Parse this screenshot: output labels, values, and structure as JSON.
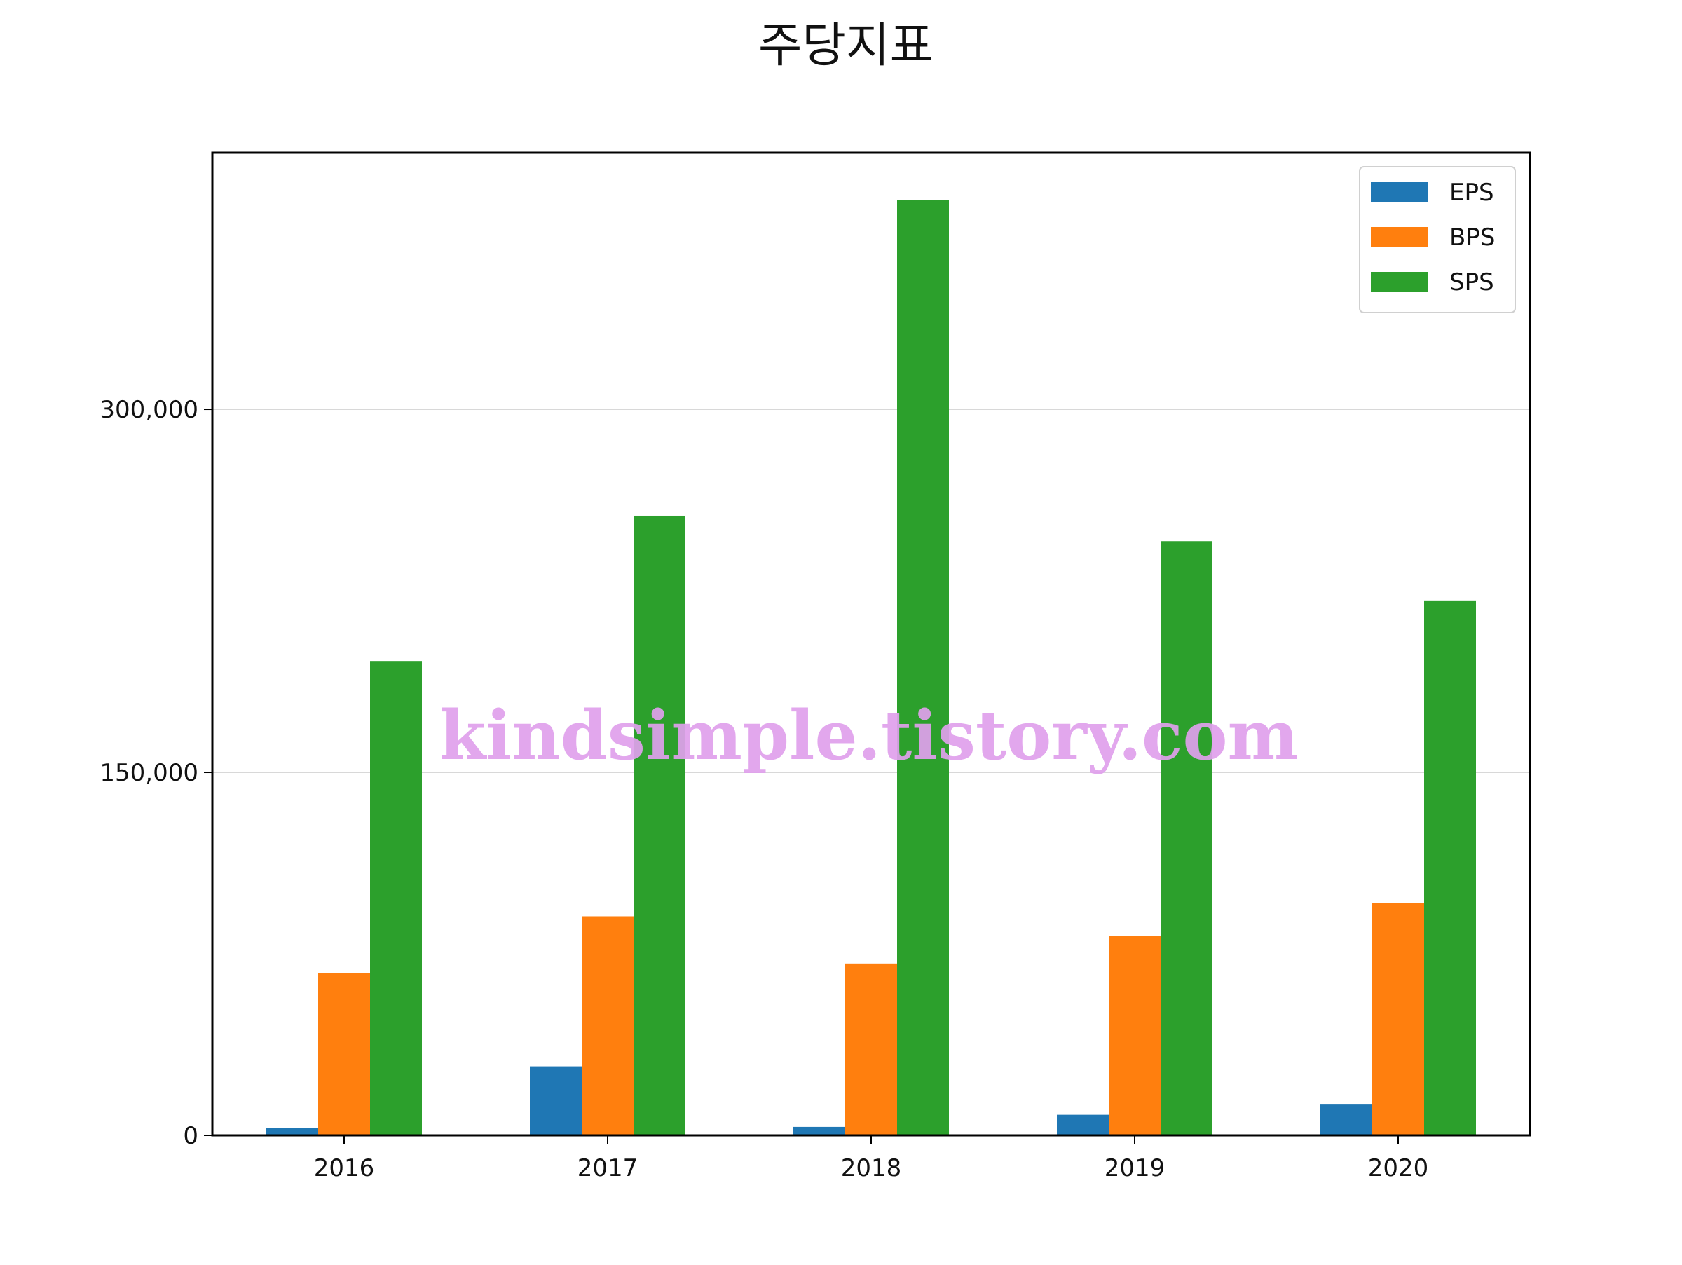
{
  "chart_data": {
    "type": "bar",
    "title": "주당지표",
    "xlabel": "",
    "ylabel": "",
    "categories": [
      "2016",
      "2017",
      "2018",
      "2019",
      "2020"
    ],
    "series": [
      {
        "name": "EPS",
        "color": "#1f77b4",
        "values": [
          3000,
          28500,
          3500,
          8500,
          13000
        ]
      },
      {
        "name": "BPS",
        "color": "#ff7f0e",
        "values": [
          67000,
          90500,
          71000,
          82500,
          96000
        ]
      },
      {
        "name": "SPS",
        "color": "#2ca02c",
        "values": [
          196000,
          256000,
          386500,
          245500,
          221000
        ]
      }
    ],
    "yticks": [
      0,
      150000,
      300000
    ],
    "ytick_labels": [
      "0",
      "150,000",
      "300,000"
    ],
    "ylim": [
      0,
      406000
    ],
    "grid": "horizontal",
    "legend": "top-right"
  },
  "watermark": "kindsimple.tistory.com"
}
